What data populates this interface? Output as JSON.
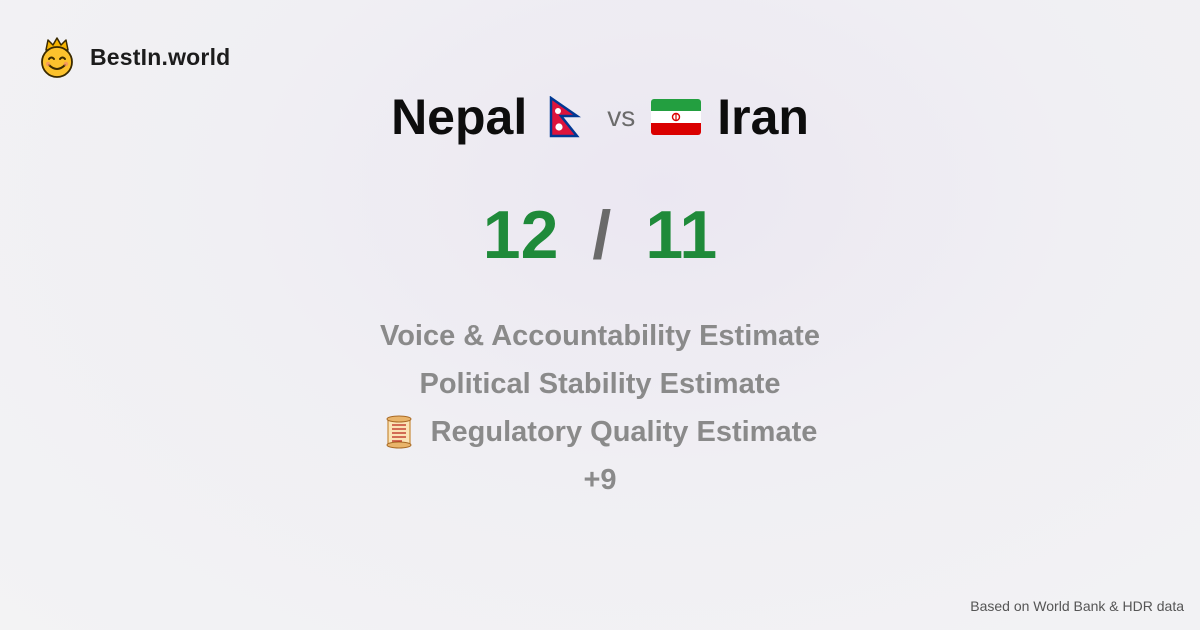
{
  "brand": {
    "name": "BestIn.world",
    "logo_icon": "smiling-face-with-crown-icon"
  },
  "comparison": {
    "left_country": "Nepal",
    "left_flag_icon": "nepal-flag-icon",
    "separator": "vs",
    "right_country": "Iran",
    "right_flag_icon": "iran-flag-icon"
  },
  "score": {
    "left": "12",
    "divider": "/",
    "right": "11"
  },
  "metrics": [
    {
      "label": "Voice & Accountability Estimate"
    },
    {
      "label": "Political Stability Estimate"
    },
    {
      "label": "Regulatory Quality Estimate",
      "icon": "scroll-icon"
    }
  ],
  "more_count": "+9",
  "footer": {
    "source": "Based on World Bank & HDR data"
  },
  "colors": {
    "score": "#1f8a3a",
    "muted_text": "#8a8a8a",
    "title_text": "#0d0d0d"
  }
}
